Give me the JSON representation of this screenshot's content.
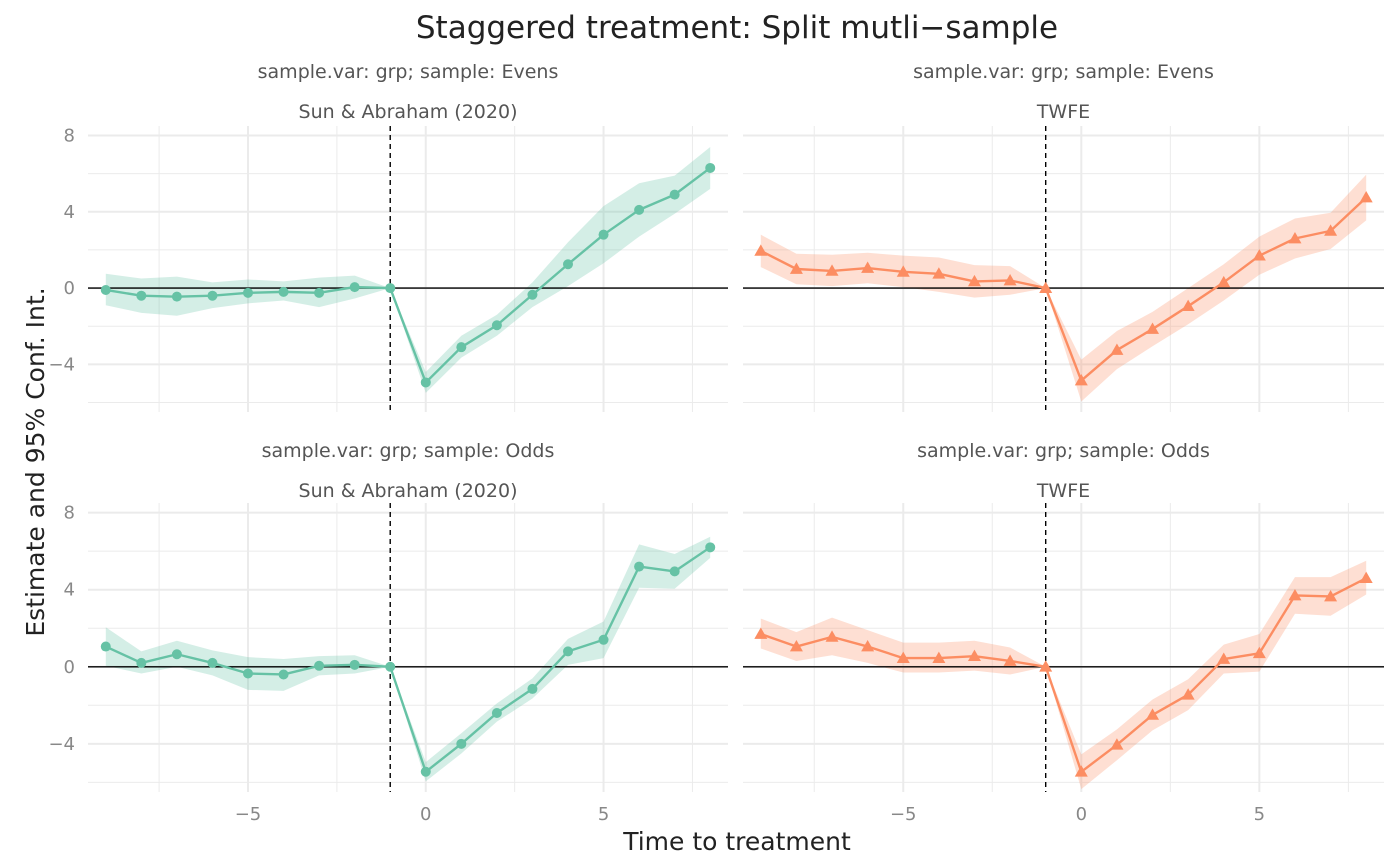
{
  "title": "Staggered treatment: Split mutli−sample",
  "xlabel": "Time to treatment",
  "ylabel": "Estimate and 95% Conf. Int.",
  "colors": {
    "sa": "#66c2a5",
    "twfe": "#fc8d62",
    "zero_line": "#000000",
    "ref_line": "#000000",
    "grid": "#ebebeb"
  },
  "chart_data": {
    "type": "line",
    "shared": {
      "xlim": [
        -9.5,
        8.5
      ],
      "ylim": [
        -6.5,
        8.5
      ],
      "x_ticks": [
        -5,
        0,
        5
      ],
      "x_tick_labels": [
        "−5",
        "0",
        "5"
      ],
      "y_ticks": [
        -4,
        0,
        4,
        8
      ],
      "y_tick_labels": [
        "−4",
        "0",
        "4",
        "8"
      ],
      "reference_x": -1,
      "reference_y": 0,
      "grid": true
    },
    "panels": [
      {
        "strip_top": "sample.var: grp; sample: Evens",
        "strip_bottom": "Sun & Abraham (2020)",
        "series": [
          {
            "marker": "circle",
            "color": "#66c2a5",
            "x": [
              -9,
              -8,
              -7,
              -6,
              -5,
              -4,
              -3,
              -2,
              -1,
              0,
              1,
              2,
              3,
              4,
              5,
              6,
              7,
              8
            ],
            "y": [
              -0.1,
              -0.4,
              -0.45,
              -0.4,
              -0.25,
              -0.2,
              -0.25,
              0.05,
              0,
              -4.95,
              -3.1,
              -1.95,
              -0.35,
              1.25,
              2.8,
              4.1,
              4.9,
              6.3
            ],
            "ci_low": [
              -0.9,
              -1.3,
              -1.45,
              -1.05,
              -0.8,
              -0.65,
              -1.0,
              -0.55,
              0,
              -5.5,
              -3.65,
              -2.5,
              -1.0,
              0.1,
              1.3,
              2.7,
              3.9,
              5.2
            ],
            "ci_high": [
              0.75,
              0.5,
              0.6,
              0.3,
              0.45,
              0.35,
              0.55,
              0.65,
              0,
              -4.4,
              -2.5,
              -1.4,
              0.3,
              2.4,
              4.3,
              5.5,
              5.9,
              7.4
            ]
          }
        ]
      },
      {
        "strip_top": "sample.var: grp; sample: Evens",
        "strip_bottom": "TWFE",
        "series": [
          {
            "marker": "triangle",
            "color": "#fc8d62",
            "x": [
              -9,
              -8,
              -7,
              -6,
              -5,
              -4,
              -3,
              -2,
              -1,
              0,
              1,
              2,
              3,
              4,
              5,
              6,
              7,
              8
            ],
            "y": [
              1.95,
              1.0,
              0.9,
              1.05,
              0.85,
              0.75,
              0.35,
              0.4,
              0,
              -4.85,
              -3.25,
              -2.15,
              -0.95,
              0.3,
              1.7,
              2.6,
              3.0,
              4.75
            ],
            "ci_low": [
              1.1,
              0.2,
              0.1,
              0.25,
              0.05,
              -0.2,
              -0.5,
              -0.35,
              0,
              -5.95,
              -4.25,
              -3.05,
              -1.9,
              -0.65,
              0.7,
              1.55,
              2.05,
              3.55
            ],
            "ci_high": [
              2.8,
              1.8,
              1.75,
              1.85,
              1.7,
              1.6,
              1.2,
              1.15,
              0,
              -3.75,
              -2.25,
              -1.25,
              0.0,
              1.25,
              2.7,
              3.65,
              3.95,
              5.95
            ]
          }
        ]
      },
      {
        "strip_top": "sample.var: grp; sample: Odds",
        "strip_bottom": "Sun & Abraham (2020)",
        "series": [
          {
            "marker": "circle",
            "color": "#66c2a5",
            "x": [
              -9,
              -8,
              -7,
              -6,
              -5,
              -4,
              -3,
              -2,
              -1,
              0,
              1,
              2,
              3,
              4,
              5,
              6,
              7,
              8
            ],
            "y": [
              1.05,
              0.2,
              0.65,
              0.2,
              -0.35,
              -0.4,
              0.05,
              0.1,
              0,
              -5.45,
              -4.0,
              -2.4,
              -1.15,
              0.8,
              1.4,
              5.2,
              4.95,
              6.2
            ],
            "ci_low": [
              0.05,
              -0.35,
              0.0,
              -0.45,
              -1.2,
              -1.25,
              -0.45,
              -0.35,
              0,
              -5.95,
              -4.5,
              -2.85,
              -1.65,
              0.1,
              0.45,
              4.1,
              4.05,
              5.65
            ],
            "ci_high": [
              2.05,
              0.8,
              1.35,
              0.85,
              0.5,
              0.4,
              0.55,
              0.6,
              0,
              -4.95,
              -3.45,
              -1.9,
              -0.6,
              1.45,
              2.35,
              6.35,
              5.85,
              6.75
            ]
          }
        ]
      },
      {
        "strip_top": "sample.var: grp; sample: Odds",
        "strip_bottom": "TWFE",
        "series": [
          {
            "marker": "triangle",
            "color": "#fc8d62",
            "x": [
              -9,
              -8,
              -7,
              -6,
              -5,
              -4,
              -3,
              -2,
              -1,
              0,
              1,
              2,
              3,
              4,
              5,
              6,
              7,
              8
            ],
            "y": [
              1.7,
              1.05,
              1.55,
              1.05,
              0.45,
              0.45,
              0.55,
              0.3,
              0,
              -5.45,
              -4.05,
              -2.5,
              -1.45,
              0.4,
              0.7,
              3.7,
              3.65,
              4.6
            ],
            "ci_low": [
              0.95,
              0.3,
              0.6,
              0.2,
              -0.3,
              -0.3,
              -0.2,
              -0.4,
              0,
              -6.35,
              -4.85,
              -3.3,
              -2.25,
              -0.35,
              -0.25,
              2.75,
              2.65,
              3.75
            ],
            "ci_high": [
              2.5,
              1.8,
              2.55,
              1.9,
              1.25,
              1.25,
              1.35,
              1.0,
              0,
              -4.55,
              -3.25,
              -1.7,
              -0.65,
              1.15,
              1.7,
              4.65,
              4.65,
              5.5
            ]
          }
        ]
      }
    ]
  }
}
